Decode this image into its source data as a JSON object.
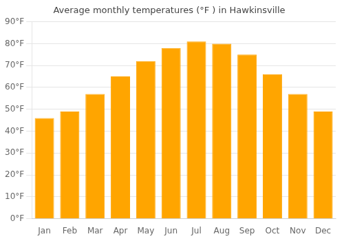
{
  "chart_data": {
    "type": "bar",
    "title": "Average monthly temperatures (°F ) in Hawkinsville",
    "categories": [
      "Jan",
      "Feb",
      "Mar",
      "Apr",
      "May",
      "Jun",
      "Jul",
      "Aug",
      "Sep",
      "Oct",
      "Nov",
      "Dec"
    ],
    "values": [
      46,
      49,
      57,
      65,
      72,
      78,
      81,
      80,
      75,
      66,
      57,
      49
    ],
    "color": "#FFA500",
    "ylim": [
      0,
      90
    ],
    "yticks": [
      {
        "value": 0,
        "label": "0°F"
      },
      {
        "value": 10,
        "label": "10°F"
      },
      {
        "value": 20,
        "label": "20°F"
      },
      {
        "value": 30,
        "label": "30°F"
      },
      {
        "value": 40,
        "label": "40°F"
      },
      {
        "value": 50,
        "label": "50°F"
      },
      {
        "value": 60,
        "label": "60°F"
      },
      {
        "value": 70,
        "label": "70°F"
      },
      {
        "value": 80,
        "label": "80°F"
      },
      {
        "value": 90,
        "label": "90°F"
      }
    ],
    "grid": true
  }
}
